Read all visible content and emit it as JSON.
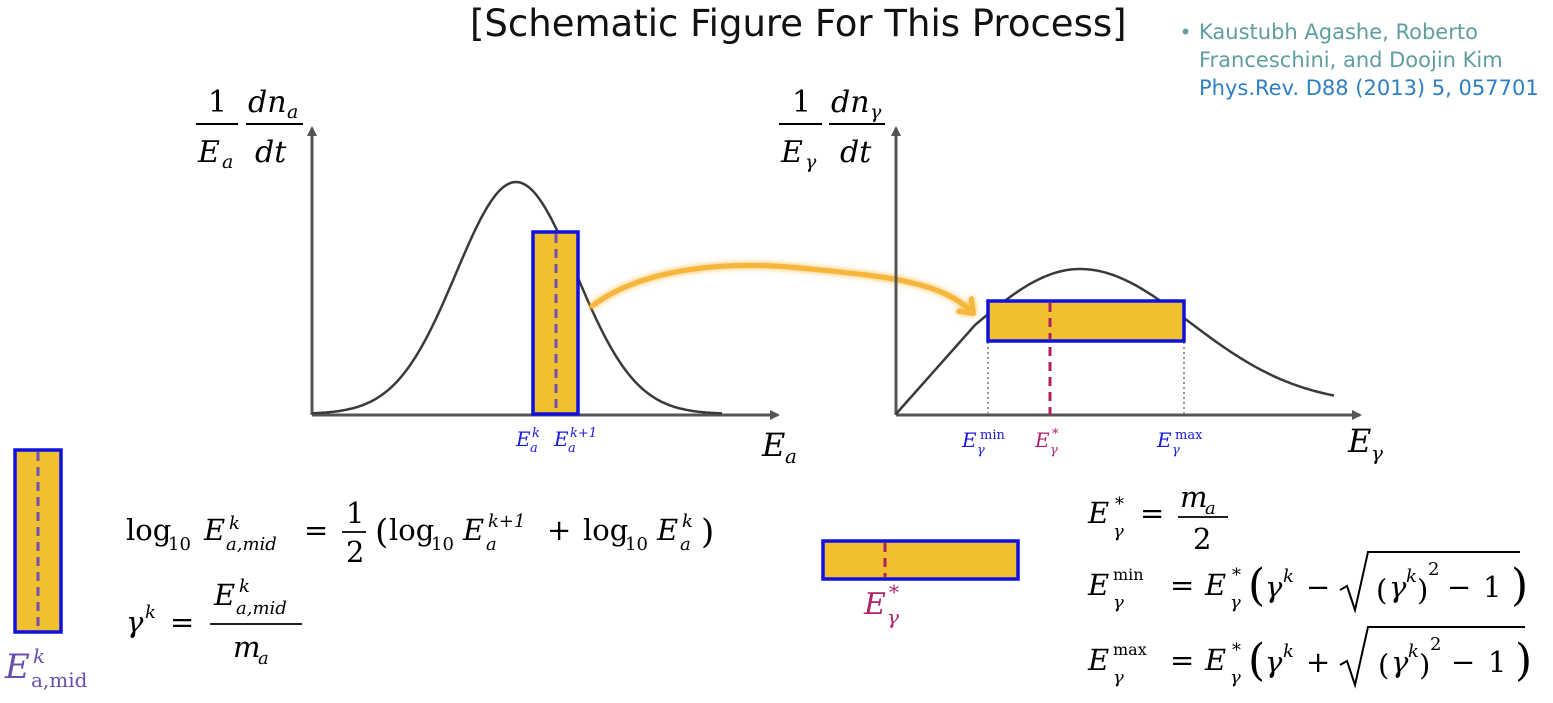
{
  "title": "[Schematic Figure For This Process]",
  "reference": {
    "authors": "Kaustubh Agashe, Roberto Franceschini, and Doojin Kim",
    "journal": "Phys.Rev. D88 (2013) 5, 057701"
  },
  "left_plot": {
    "y_label_num1": "1",
    "y_label_den1": "E",
    "y_label_den1_sub": "a",
    "y_label_num2": "dn",
    "y_label_num2_sub": "a",
    "y_label_den2": "dt",
    "x_label": "E",
    "x_label_sub": "a",
    "tick1": "E",
    "tick1_sub": "a",
    "tick1_sup": "k",
    "tick2": "E",
    "tick2_sub": "a",
    "tick2_sup": "k+1"
  },
  "right_plot": {
    "y_label_num1": "1",
    "y_label_den1": "E",
    "y_label_den1_sub": "γ",
    "y_label_num2": "dn",
    "y_label_num2_sub": "γ",
    "y_label_den2": "dt",
    "x_label": "E",
    "x_label_sub": "γ",
    "tick_min": "E",
    "tick_min_sub": "γ",
    "tick_min_sup": "min",
    "tick_star": "E",
    "tick_star_sub": "γ",
    "tick_star_sup": "*",
    "tick_max": "E",
    "tick_max_sub": "γ",
    "tick_max_sup": "max"
  },
  "legend_bin": {
    "label": "E",
    "label_sub": "a,mid",
    "label_sup": "k"
  },
  "legend_bar": {
    "label": "E",
    "label_sub": "γ",
    "label_sup": "*"
  },
  "equations": {
    "log_lhs": "log",
    "log_base": "10",
    "E": "E",
    "sub_a_mid": "a,mid",
    "sub_a": "a",
    "sup_k": "k",
    "sup_k1": "k+1",
    "eq": "=",
    "one": "1",
    "two": "2",
    "plus": "+",
    "minus": "−",
    "gamma": "γ",
    "m": "m",
    "sub_gamma": "γ",
    "sup_star": "*",
    "sup_min": "min",
    "sup_max": "max",
    "sq": "2",
    "open_paren": "(",
    "close_paren": ")",
    "sqrt": "√"
  },
  "colors": {
    "bin_fill": "#f0c030",
    "bin_stroke": "#1010e0",
    "mid_line": "#7050b0",
    "star_line": "#b02060",
    "arrow": "#f5b63a",
    "curve": "#3a3a3a",
    "axis": "#555555",
    "tick_blue": "#1a1ae0",
    "tick_magenta": "#b0226a",
    "label_purple": "#6a4fb0"
  }
}
